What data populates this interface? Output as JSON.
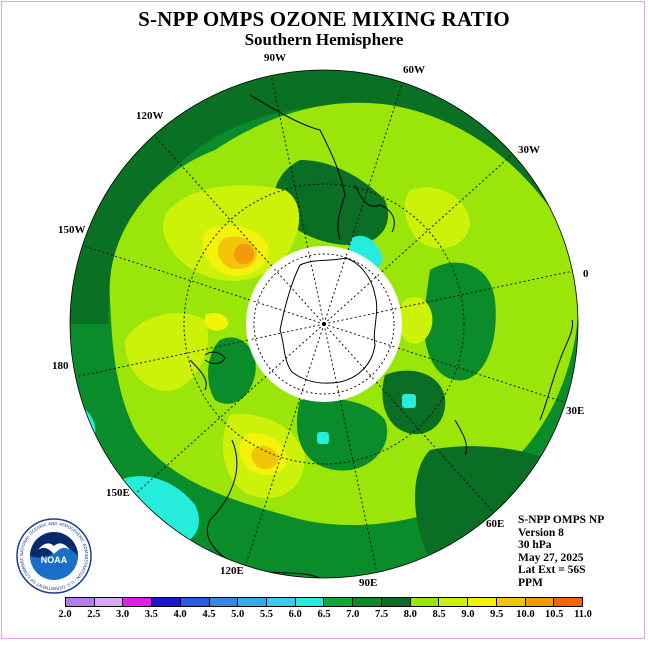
{
  "title": "S-NPP OMPS OZONE MIXING RATIO",
  "subtitle": "Southern Hemisphere",
  "longitude_labels": [
    {
      "id": "lon-90w",
      "text": "90W"
    },
    {
      "id": "lon-60w",
      "text": "60W"
    },
    {
      "id": "lon-120w",
      "text": "120W"
    },
    {
      "id": "lon-30w",
      "text": "30W"
    },
    {
      "id": "lon-150w",
      "text": "150W"
    },
    {
      "id": "lon-0",
      "text": "0"
    },
    {
      "id": "lon-180",
      "text": "180"
    },
    {
      "id": "lon-30e",
      "text": "30E"
    },
    {
      "id": "lon-150e",
      "text": "150E"
    },
    {
      "id": "lon-60e",
      "text": "60E"
    },
    {
      "id": "lon-120e",
      "text": "120E"
    },
    {
      "id": "lon-90e",
      "text": "90E"
    }
  ],
  "info": {
    "product": "S-NPP OMPS NP",
    "version": "Version 8",
    "level": "30 hPa",
    "date": "May 27, 2025",
    "lat_ext": "Lat Ext = 56S",
    "units": "PPM"
  },
  "logo": {
    "text": "NOAA",
    "ring_text": "NATIONAL OCEANIC AND ATMOSPHERIC ADMINISTRATION · U.S. DEPARTMENT OF COMMERCE"
  },
  "colorbar": {
    "ticks": [
      "2.0",
      "2.5",
      "3.0",
      "3.5",
      "4.0",
      "4.5",
      "5.0",
      "5.5",
      "6.0",
      "6.5",
      "7.0",
      "7.5",
      "8.0",
      "8.5",
      "9.0",
      "9.5",
      "10.0",
      "10.5",
      "11.0"
    ],
    "colors": [
      "#b67aef",
      "#d9a8f2",
      "#e21ee6",
      "#1a1acc",
      "#2b5be0",
      "#2f8ae6",
      "#37a9ee",
      "#3ec9f0",
      "#26ecdc",
      "#14a63a",
      "#0b8c2a",
      "#0a6e24",
      "#9ae60a",
      "#ccf20a",
      "#f2f20a",
      "#f2c40a",
      "#f29a0a",
      "#f2660a",
      "#e60a0a",
      "#8a5a32"
    ]
  },
  "colors": {
    "frame": "#e2a6e6",
    "dark_green": "#0a6e24",
    "mid_green": "#0b8c2a",
    "light_green": "#9ae60a",
    "yellow_green": "#ccf20a",
    "yellow": "#f2f20a",
    "orange": "#f29a0a",
    "cyan": "#26ecdc"
  }
}
